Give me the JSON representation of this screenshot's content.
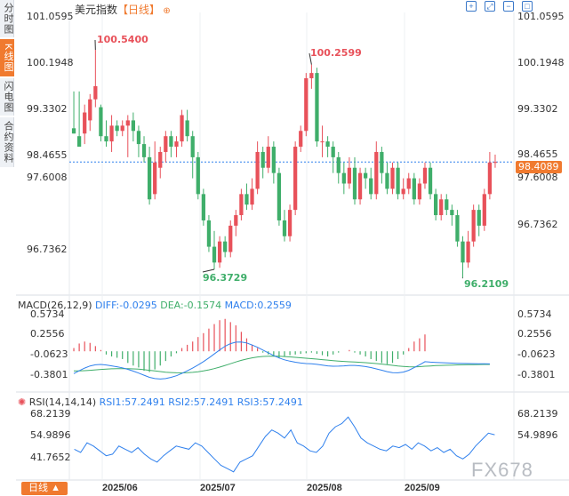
{
  "sidebar": {
    "tabs": [
      {
        "label": "分时图",
        "active": false
      },
      {
        "label": "K线图",
        "active": true
      },
      {
        "label": "闪电图",
        "active": false
      },
      {
        "label": "合约资料",
        "active": false
      }
    ]
  },
  "header": {
    "title": "美元指数",
    "period_badge": "【日线】",
    "pin_icon": "pin-icon",
    "tools": [
      "crosshair-icon",
      "fit-icon",
      "zoom-out-icon",
      "fullscreen-icon"
    ]
  },
  "colors": {
    "up": "#e8515a",
    "down": "#3fae6a",
    "accent": "#f07a2f",
    "diff_line": "#2f80ed",
    "dea_line": "#3fae6a",
    "rsi_line": "#2f80ed",
    "last_price_line": "#2f80ed"
  },
  "main_chart": {
    "y_ticks": [
      "101.0595",
      "100.1948",
      "99.3302",
      "98.4655",
      "97.6008",
      "96.7362"
    ],
    "last_price": "98.4089",
    "annotations": {
      "high1": "100.5400",
      "low1": "96.3729",
      "high2": "100.2599",
      "low2": "96.2109"
    }
  },
  "macd": {
    "title": "MACD(26,12,9)",
    "diff": "DIFF:-0.0295",
    "dea": "DEA:-0.1574",
    "macd": "MACD:0.2559",
    "y_ticks": [
      "0.5734",
      "0.2556",
      "-0.0623",
      "-0.3801"
    ]
  },
  "rsi": {
    "title": "RSI(14,14,14)",
    "rsi1": "RSI1:57.2491",
    "rsi2": "RSI2:57.2491",
    "rsi3": "RSI3:57.2491",
    "y_ticks": [
      "68.2139",
      "54.9896",
      "41.7652"
    ],
    "settings_icon": "gear-icon"
  },
  "footer": {
    "period_button": "日线 ▲",
    "months": [
      "2025/06",
      "2025/07",
      "2025/08",
      "2025/09"
    ],
    "watermark": "FX678"
  },
  "chart_data": {
    "type": "candlestick",
    "title": "美元指数",
    "y_ticks": [
      101.0595,
      100.1948,
      99.3302,
      98.4655,
      97.6008,
      96.7362
    ],
    "ylim": [
      96.05,
      101.25
    ],
    "x_ticks": [
      "2025/06",
      "2025/07",
      "2025/08",
      "2025/09"
    ],
    "last_price": 98.4089,
    "candles": [
      {
        "o": 99.05,
        "c": 98.95,
        "h": 99.75,
        "l": 98.95
      },
      {
        "o": 98.9,
        "c": 98.7,
        "h": 99.75,
        "l": 98.7
      },
      {
        "o": 98.95,
        "c": 99.35,
        "h": 99.5,
        "l": 98.75
      },
      {
        "o": 99.2,
        "c": 99.6,
        "h": 99.7,
        "l": 99.0
      },
      {
        "o": 99.6,
        "c": 99.85,
        "h": 100.54,
        "l": 99.45
      },
      {
        "o": 99.45,
        "c": 98.9,
        "h": 99.5,
        "l": 98.8
      },
      {
        "o": 98.9,
        "c": 98.8,
        "h": 99.2,
        "l": 98.7
      },
      {
        "o": 98.8,
        "c": 99.1,
        "h": 99.3,
        "l": 98.6
      },
      {
        "o": 99.1,
        "c": 99.0,
        "h": 99.2,
        "l": 98.9
      },
      {
        "o": 99.0,
        "c": 99.1,
        "h": 99.2,
        "l": 98.9
      },
      {
        "o": 99.1,
        "c": 99.2,
        "h": 99.3,
        "l": 98.5
      },
      {
        "o": 99.2,
        "c": 99.0,
        "h": 99.35,
        "l": 98.8
      },
      {
        "o": 99.0,
        "c": 98.75,
        "h": 99.1,
        "l": 98.5
      },
      {
        "o": 98.75,
        "c": 98.5,
        "h": 98.9,
        "l": 98.4
      },
      {
        "o": 98.5,
        "c": 97.7,
        "h": 98.7,
        "l": 97.6
      },
      {
        "o": 97.8,
        "c": 98.4,
        "h": 98.8,
        "l": 97.7
      },
      {
        "o": 98.3,
        "c": 98.6,
        "h": 98.7,
        "l": 98.1
      },
      {
        "o": 98.6,
        "c": 98.9,
        "h": 99.0,
        "l": 98.4
      },
      {
        "o": 98.9,
        "c": 98.7,
        "h": 99.0,
        "l": 98.5
      },
      {
        "o": 98.7,
        "c": 98.8,
        "h": 98.9,
        "l": 98.5
      },
      {
        "o": 98.8,
        "c": 99.3,
        "h": 99.4,
        "l": 98.7
      },
      {
        "o": 99.2,
        "c": 98.9,
        "h": 99.4,
        "l": 98.8
      },
      {
        "o": 98.9,
        "c": 98.5,
        "h": 99.0,
        "l": 98.1
      },
      {
        "o": 98.5,
        "c": 97.8,
        "h": 98.6,
        "l": 97.7
      },
      {
        "o": 97.8,
        "c": 97.3,
        "h": 97.9,
        "l": 97.2
      },
      {
        "o": 97.3,
        "c": 96.8,
        "h": 97.4,
        "l": 96.7
      },
      {
        "o": 96.8,
        "c": 96.5,
        "h": 97.1,
        "l": 96.37
      },
      {
        "o": 96.5,
        "c": 96.9,
        "h": 97.0,
        "l": 96.4
      },
      {
        "o": 96.9,
        "c": 96.7,
        "h": 97.0,
        "l": 96.6
      },
      {
        "o": 96.7,
        "c": 97.2,
        "h": 97.3,
        "l": 96.6
      },
      {
        "o": 97.2,
        "c": 97.4,
        "h": 97.5,
        "l": 97.0
      },
      {
        "o": 97.4,
        "c": 97.8,
        "h": 97.9,
        "l": 97.3
      },
      {
        "o": 97.8,
        "c": 97.6,
        "h": 98.0,
        "l": 97.5
      },
      {
        "o": 97.6,
        "c": 97.9,
        "h": 98.1,
        "l": 97.5
      },
      {
        "o": 97.9,
        "c": 98.6,
        "h": 98.8,
        "l": 97.8
      },
      {
        "o": 98.6,
        "c": 98.3,
        "h": 98.7,
        "l": 98.1
      },
      {
        "o": 98.3,
        "c": 98.7,
        "h": 98.9,
        "l": 98.2
      },
      {
        "o": 98.7,
        "c": 98.2,
        "h": 98.8,
        "l": 98.0
      },
      {
        "o": 98.2,
        "c": 97.3,
        "h": 98.3,
        "l": 97.2
      },
      {
        "o": 97.3,
        "c": 97.0,
        "h": 97.5,
        "l": 96.9
      },
      {
        "o": 97.0,
        "c": 97.5,
        "h": 97.6,
        "l": 96.9
      },
      {
        "o": 97.5,
        "c": 98.7,
        "h": 98.8,
        "l": 97.4
      },
      {
        "o": 98.7,
        "c": 99.0,
        "h": 99.1,
        "l": 98.6
      },
      {
        "o": 99.0,
        "c": 100.0,
        "h": 100.1,
        "l": 98.9
      },
      {
        "o": 100.0,
        "c": 100.1,
        "h": 100.26,
        "l": 99.8
      },
      {
        "o": 100.1,
        "c": 98.8,
        "h": 100.2,
        "l": 98.7
      },
      {
        "o": 98.8,
        "c": 98.8,
        "h": 99.1,
        "l": 98.5
      },
      {
        "o": 98.8,
        "c": 98.7,
        "h": 98.9,
        "l": 98.5
      },
      {
        "o": 98.7,
        "c": 98.5,
        "h": 98.8,
        "l": 98.2
      },
      {
        "o": 98.5,
        "c": 98.2,
        "h": 98.6,
        "l": 98.0
      },
      {
        "o": 98.2,
        "c": 98.0,
        "h": 98.4,
        "l": 97.8
      },
      {
        "o": 98.0,
        "c": 98.3,
        "h": 98.5,
        "l": 97.9
      },
      {
        "o": 98.3,
        "c": 97.7,
        "h": 98.5,
        "l": 97.6
      },
      {
        "o": 97.7,
        "c": 98.2,
        "h": 98.3,
        "l": 97.6
      },
      {
        "o": 98.2,
        "c": 98.1,
        "h": 98.3,
        "l": 97.9
      },
      {
        "o": 98.1,
        "c": 97.8,
        "h": 98.3,
        "l": 97.7
      },
      {
        "o": 97.8,
        "c": 98.6,
        "h": 98.8,
        "l": 97.7
      },
      {
        "o": 98.6,
        "c": 98.2,
        "h": 98.7,
        "l": 98.0
      },
      {
        "o": 98.2,
        "c": 97.9,
        "h": 98.4,
        "l": 97.8
      },
      {
        "o": 97.9,
        "c": 98.3,
        "h": 98.4,
        "l": 97.8
      },
      {
        "o": 98.3,
        "c": 97.8,
        "h": 98.4,
        "l": 97.7
      },
      {
        "o": 97.8,
        "c": 97.9,
        "h": 98.1,
        "l": 97.7
      },
      {
        "o": 97.9,
        "c": 98.1,
        "h": 98.2,
        "l": 97.8
      },
      {
        "o": 98.1,
        "c": 97.7,
        "h": 98.2,
        "l": 97.6
      },
      {
        "o": 97.7,
        "c": 98.0,
        "h": 98.1,
        "l": 97.6
      },
      {
        "o": 98.0,
        "c": 98.3,
        "h": 98.4,
        "l": 97.9
      },
      {
        "o": 98.3,
        "c": 97.8,
        "h": 98.4,
        "l": 97.7
      },
      {
        "o": 97.8,
        "c": 97.4,
        "h": 97.9,
        "l": 97.3
      },
      {
        "o": 97.4,
        "c": 97.7,
        "h": 97.8,
        "l": 97.3
      },
      {
        "o": 97.7,
        "c": 97.5,
        "h": 97.8,
        "l": 97.4
      },
      {
        "o": 97.5,
        "c": 97.4,
        "h": 97.6,
        "l": 97.2
      },
      {
        "o": 97.4,
        "c": 96.9,
        "h": 97.5,
        "l": 96.8
      },
      {
        "o": 96.9,
        "c": 96.5,
        "h": 97.0,
        "l": 96.21
      },
      {
        "o": 96.5,
        "c": 96.9,
        "h": 97.1,
        "l": 96.4
      },
      {
        "o": 96.9,
        "c": 97.5,
        "h": 97.6,
        "l": 96.8
      },
      {
        "o": 97.5,
        "c": 97.2,
        "h": 97.6,
        "l": 97.0
      },
      {
        "o": 97.2,
        "c": 97.8,
        "h": 97.9,
        "l": 97.1
      },
      {
        "o": 97.8,
        "c": 98.4,
        "h": 98.6,
        "l": 97.7
      },
      {
        "o": 98.4,
        "c": 98.41,
        "h": 98.55,
        "l": 98.3
      }
    ],
    "macd_hist": [
      0.05,
      0.12,
      0.15,
      0.13,
      0.08,
      0.02,
      -0.05,
      -0.08,
      -0.1,
      -0.12,
      -0.18,
      -0.22,
      -0.25,
      -0.3,
      -0.32,
      -0.28,
      -0.22,
      -0.15,
      -0.08,
      -0.03,
      0.05,
      0.1,
      0.15,
      0.22,
      0.28,
      0.35,
      0.42,
      0.48,
      0.5,
      0.45,
      0.4,
      0.3,
      0.2,
      0.1,
      0.05,
      -0.02,
      -0.05,
      -0.08,
      -0.1,
      -0.08,
      -0.06,
      -0.05,
      -0.04,
      -0.03,
      -0.02,
      -0.04,
      -0.06,
      -0.08,
      -0.05,
      -0.02,
      0.0,
      0.02,
      -0.02,
      -0.05,
      -0.08,
      -0.12,
      -0.15,
      -0.18,
      -0.2,
      -0.18,
      -0.12,
      -0.05,
      0.05,
      0.15,
      0.2,
      0.26,
      0.0,
      0.0,
      0.0,
      0.0,
      0.0,
      0.0,
      0.0,
      0.0,
      0.0,
      0.0,
      0.0,
      0.0
    ],
    "rsi": [
      48,
      46,
      52,
      50,
      47,
      44,
      45,
      50,
      48,
      46,
      49,
      45,
      42,
      40,
      44,
      47,
      50,
      49,
      48,
      52,
      50,
      46,
      42,
      38,
      36,
      34,
      40,
      42,
      44,
      50,
      56,
      60,
      58,
      55,
      60,
      52,
      50,
      47,
      46,
      50,
      58,
      62,
      64,
      68,
      62,
      55,
      52,
      50,
      48,
      47,
      50,
      49,
      51,
      48,
      52,
      50,
      47,
      49,
      46,
      48,
      44,
      42,
      45,
      50,
      54,
      58,
      57
    ]
  }
}
